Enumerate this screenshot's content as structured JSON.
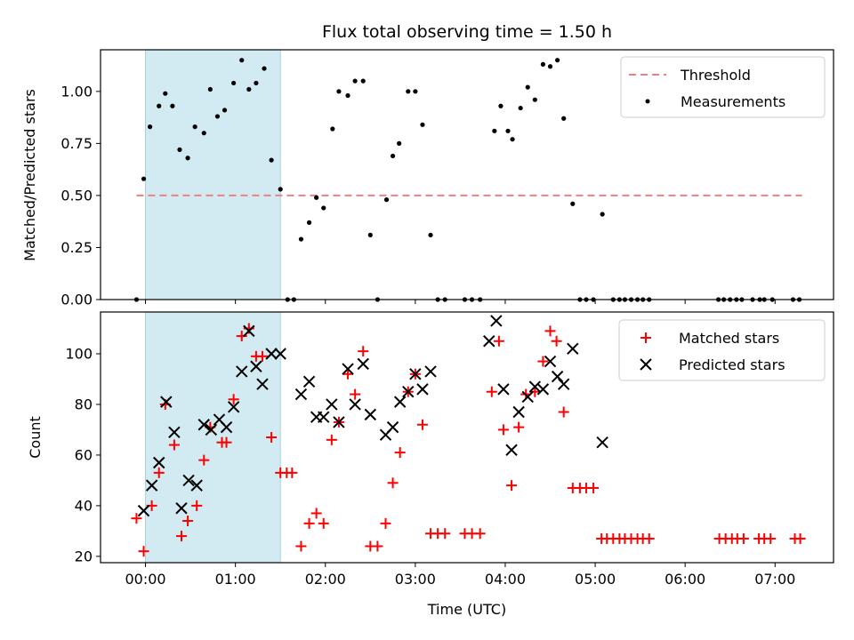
{
  "chart_data": [
    {
      "type": "scatter",
      "title": "Flux total observing time = 1.50 h",
      "xlabel": "",
      "ylabel": "Matched/Predicted stars",
      "ylim": [
        0,
        1.2
      ],
      "xlim": [
        -0.5,
        7.65
      ],
      "yticks": [
        0,
        0.25,
        0.5,
        0.75,
        1.0
      ],
      "ytick_labels": [
        "0.00",
        "0.25",
        "0.50",
        "0.75",
        "1.00"
      ],
      "shaded_span": [
        0,
        1.5
      ],
      "threshold": {
        "name": "Threshold",
        "value": 0.5,
        "x_range": [
          -0.1,
          7.3
        ],
        "color": "#f08080"
      },
      "series": [
        {
          "name": "Measurements",
          "color": "#000000",
          "marker": "dot",
          "x": [
            -0.1,
            -0.02,
            0.05,
            0.15,
            0.22,
            0.3,
            0.38,
            0.47,
            0.55,
            0.65,
            0.72,
            0.8,
            0.88,
            0.98,
            1.07,
            1.15,
            1.23,
            1.32,
            1.4,
            1.5,
            1.58,
            1.65,
            1.73,
            1.82,
            1.9,
            1.98,
            2.08,
            2.15,
            2.25,
            2.33,
            2.42,
            2.5,
            2.58,
            2.68,
            2.75,
            2.82,
            2.92,
            3.0,
            3.08,
            3.17,
            3.25,
            3.33,
            3.55,
            3.63,
            3.72,
            3.88,
            3.95,
            4.03,
            4.08,
            4.17,
            4.25,
            4.33,
            4.42,
            4.5,
            4.58,
            4.65,
            4.75,
            4.83,
            4.9,
            4.98,
            5.08,
            5.2,
            5.27,
            5.33,
            5.4,
            5.47,
            5.53,
            5.6,
            6.37,
            6.43,
            6.5,
            6.57,
            6.63,
            6.75,
            6.83,
            6.88,
            6.97,
            7.2,
            7.27
          ],
          "y": [
            0.0,
            0.58,
            0.83,
            0.93,
            0.99,
            0.93,
            0.72,
            0.68,
            0.83,
            0.8,
            1.01,
            0.88,
            0.91,
            1.04,
            1.15,
            1.01,
            1.04,
            1.11,
            0.67,
            0.53,
            0.0,
            0.0,
            0.29,
            0.37,
            0.49,
            0.44,
            0.82,
            1.0,
            0.98,
            1.05,
            1.05,
            0.31,
            0.0,
            0.48,
            0.69,
            0.75,
            1.0,
            1.0,
            0.84,
            0.31,
            0.0,
            0.0,
            0.0,
            0.0,
            0.0,
            0.81,
            0.93,
            0.81,
            0.77,
            0.92,
            1.02,
            0.96,
            1.13,
            1.12,
            1.15,
            0.87,
            0.46,
            0.0,
            0.0,
            0.0,
            0.41,
            0.0,
            0.0,
            0.0,
            0.0,
            0.0,
            0.0,
            0.0,
            0.0,
            0.0,
            0.0,
            0.0,
            0.0,
            0.0,
            0.0,
            0.0,
            0.0,
            0.0,
            0.0
          ]
        }
      ],
      "legend": {
        "position": "top-right",
        "entries": [
          "Threshold",
          "Measurements"
        ]
      }
    },
    {
      "type": "scatter",
      "title": "",
      "xlabel": "Time (UTC)",
      "ylabel": "Count",
      "ylim": [
        17.5,
        116.5
      ],
      "xlim": [
        -0.5,
        7.65
      ],
      "yticks": [
        20,
        40,
        60,
        80,
        100
      ],
      "ytick_labels": [
        "20",
        "40",
        "60",
        "80",
        "100"
      ],
      "xticks": [
        0,
        1,
        2,
        3,
        4,
        5,
        6,
        7
      ],
      "xtick_labels": [
        "00:00",
        "01:00",
        "02:00",
        "03:00",
        "04:00",
        "05:00",
        "06:00",
        "07:00"
      ],
      "shaded_span": [
        0,
        1.5
      ],
      "series": [
        {
          "name": "Matched stars",
          "color": "#ff0000",
          "marker": "plus",
          "x": [
            -0.1,
            -0.02,
            0.07,
            0.15,
            0.22,
            0.32,
            0.4,
            0.47,
            0.57,
            0.65,
            0.72,
            0.85,
            0.9,
            0.98,
            1.07,
            1.15,
            1.23,
            1.3,
            1.4,
            1.5,
            1.57,
            1.63,
            1.73,
            1.82,
            1.9,
            1.98,
            2.07,
            2.15,
            2.25,
            2.33,
            2.42,
            2.5,
            2.58,
            2.67,
            2.75,
            2.83,
            2.92,
            3.0,
            3.08,
            3.17,
            3.25,
            3.33,
            3.55,
            3.63,
            3.72,
            3.85,
            3.93,
            3.98,
            4.07,
            4.15,
            4.23,
            4.33,
            4.42,
            4.5,
            4.57,
            4.65,
            4.75,
            4.83,
            4.9,
            4.98,
            5.07,
            5.13,
            5.2,
            5.27,
            5.33,
            5.4,
            5.47,
            5.53,
            5.6,
            6.38,
            6.45,
            6.52,
            6.58,
            6.65,
            6.82,
            6.88,
            6.95,
            7.22,
            7.28
          ],
          "y": [
            35,
            22,
            40,
            53,
            80,
            64,
            28,
            34,
            40,
            58,
            71,
            65,
            65,
            82,
            107,
            110,
            99,
            99,
            67,
            53,
            53,
            53,
            24,
            33,
            37,
            33,
            66,
            73,
            92,
            84,
            101,
            24,
            24,
            33,
            49,
            61,
            85,
            92,
            72,
            29,
            29,
            29,
            29,
            29,
            29,
            85,
            105,
            70,
            48,
            71,
            84,
            85,
            97,
            109,
            105,
            77,
            47,
            47,
            47,
            47,
            27,
            27,
            27,
            27,
            27,
            27,
            27,
            27,
            27,
            27,
            27,
            27,
            27,
            27,
            27,
            27,
            27,
            27,
            27
          ]
        },
        {
          "name": "Predicted stars",
          "color": "#000000",
          "marker": "x",
          "x": [
            -0.02,
            0.07,
            0.15,
            0.23,
            0.32,
            0.4,
            0.48,
            0.57,
            0.65,
            0.73,
            0.82,
            0.9,
            0.98,
            1.07,
            1.15,
            1.23,
            1.3,
            1.4,
            1.5,
            1.73,
            1.82,
            1.9,
            1.98,
            2.07,
            2.15,
            2.25,
            2.33,
            2.42,
            2.5,
            2.67,
            2.75,
            2.83,
            2.92,
            3.0,
            3.08,
            3.17,
            3.82,
            3.9,
            3.98,
            4.07,
            4.15,
            4.25,
            4.33,
            4.42,
            4.5,
            4.58,
            4.65,
            4.75,
            5.08
          ],
          "y": [
            38,
            48,
            57,
            81,
            69,
            39,
            50,
            48,
            72,
            70,
            74,
            71,
            79,
            93,
            109,
            95,
            88,
            100,
            100,
            84,
            89,
            75,
            75,
            80,
            73,
            94,
            80,
            96,
            76,
            68,
            71,
            81,
            85,
            92,
            86,
            93,
            105,
            113,
            86,
            62,
            77,
            83,
            87,
            86,
            97,
            91,
            88,
            102,
            65
          ]
        }
      ],
      "legend": {
        "position": "top-right",
        "entries": [
          "Matched stars",
          "Predicted stars"
        ]
      }
    }
  ]
}
